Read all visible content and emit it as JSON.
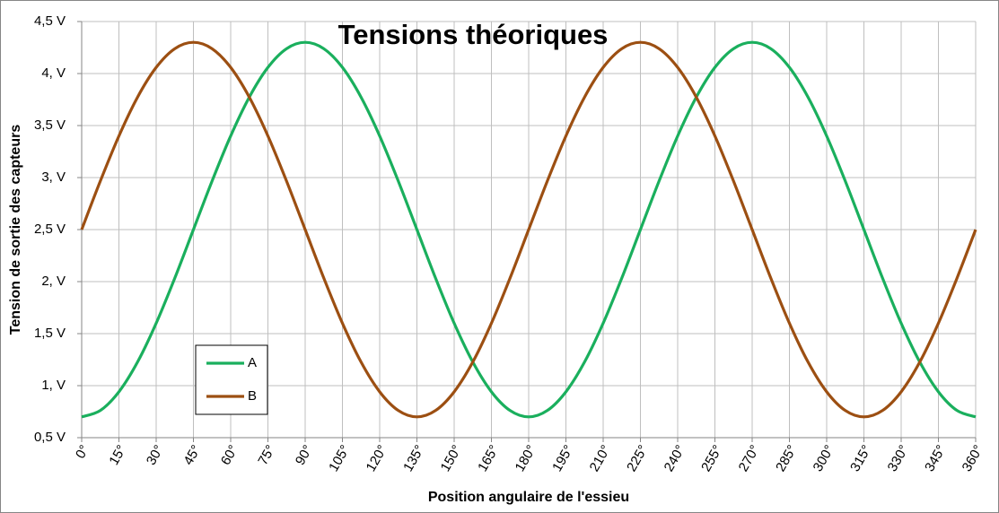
{
  "chart_data": {
    "type": "line",
    "title": "Tensions théoriques",
    "x_label": "Position angulaire de l'essieu",
    "y_label": "Tension de sortie des capteurs",
    "x": [
      0,
      7.5,
      15,
      22.5,
      30,
      37.5,
      45,
      52.5,
      60,
      67.5,
      75,
      82.5,
      90,
      97.5,
      105,
      112.5,
      120,
      127.5,
      135,
      142.5,
      150,
      157.5,
      165,
      172.5,
      180,
      187.5,
      195,
      202.5,
      210,
      217.5,
      225,
      232.5,
      240,
      247.5,
      255,
      262.5,
      270,
      277.5,
      285,
      292.5,
      300,
      307.5,
      315,
      322.5,
      330,
      337.5,
      345,
      352.5,
      360
    ],
    "series": [
      {
        "name": "A",
        "color": "#1aaf5d",
        "values": [
          0.7,
          0.761,
          0.941,
          1.227,
          1.6,
          2.034,
          2.5,
          2.966,
          3.4,
          3.773,
          4.059,
          4.239,
          4.3,
          4.239,
          4.059,
          3.773,
          3.4,
          2.966,
          2.5,
          2.034,
          1.6,
          1.227,
          0.941,
          0.761,
          0.7,
          0.761,
          0.941,
          1.227,
          1.6,
          2.034,
          2.5,
          2.966,
          3.4,
          3.773,
          4.059,
          4.239,
          4.3,
          4.239,
          4.059,
          3.773,
          3.4,
          2.966,
          2.5,
          2.034,
          1.6,
          1.227,
          0.941,
          0.761,
          0.7
        ]
      },
      {
        "name": "B",
        "color": "#9c4f12",
        "values": [
          2.5,
          2.966,
          3.4,
          3.773,
          4.059,
          4.239,
          4.3,
          4.239,
          4.059,
          3.773,
          3.4,
          2.966,
          2.5,
          2.034,
          1.6,
          1.227,
          0.941,
          0.761,
          0.7,
          0.761,
          0.941,
          1.227,
          1.6,
          2.034,
          2.5,
          2.966,
          3.4,
          3.773,
          4.059,
          4.239,
          4.3,
          4.239,
          4.059,
          3.773,
          3.4,
          2.966,
          2.5,
          2.034,
          1.6,
          1.227,
          0.941,
          0.761,
          0.7,
          0.761,
          0.941,
          1.227,
          1.6,
          2.034,
          2.5
        ]
      }
    ],
    "xlim": [
      0,
      360
    ],
    "xticks": [
      {
        "value": 0,
        "label": "0°"
      },
      {
        "value": 15,
        "label": "15°"
      },
      {
        "value": 30,
        "label": "30°"
      },
      {
        "value": 45,
        "label": "45°"
      },
      {
        "value": 60,
        "label": "60°"
      },
      {
        "value": 75,
        "label": "75°"
      },
      {
        "value": 90,
        "label": "90°"
      },
      {
        "value": 105,
        "label": "105°"
      },
      {
        "value": 120,
        "label": "120°"
      },
      {
        "value": 135,
        "label": "135°"
      },
      {
        "value": 150,
        "label": "150°"
      },
      {
        "value": 165,
        "label": "165°"
      },
      {
        "value": 180,
        "label": "180°"
      },
      {
        "value": 195,
        "label": "195°"
      },
      {
        "value": 210,
        "label": "210°"
      },
      {
        "value": 225,
        "label": "225°"
      },
      {
        "value": 240,
        "label": "240°"
      },
      {
        "value": 255,
        "label": "255°"
      },
      {
        "value": 270,
        "label": "270°"
      },
      {
        "value": 285,
        "label": "285°"
      },
      {
        "value": 300,
        "label": "300°"
      },
      {
        "value": 315,
        "label": "315°"
      },
      {
        "value": 330,
        "label": "330°"
      },
      {
        "value": 345,
        "label": "345°"
      },
      {
        "value": 360,
        "label": "360°"
      }
    ],
    "ylim": [
      0.5,
      4.5
    ],
    "yticks": [
      {
        "value": 0.5,
        "label": "0,5 V"
      },
      {
        "value": 1,
        "label": "1, V"
      },
      {
        "value": 1.5,
        "label": "1,5 V"
      },
      {
        "value": 2,
        "label": "2, V"
      },
      {
        "value": 2.5,
        "label": "2,5 V"
      },
      {
        "value": 3,
        "label": "3, V"
      },
      {
        "value": 3.5,
        "label": "3,5 V"
      },
      {
        "value": 4,
        "label": "4, V"
      },
      {
        "value": 4.5,
        "label": "4,5 V"
      }
    ],
    "grid": true,
    "legend": "lower left"
  }
}
